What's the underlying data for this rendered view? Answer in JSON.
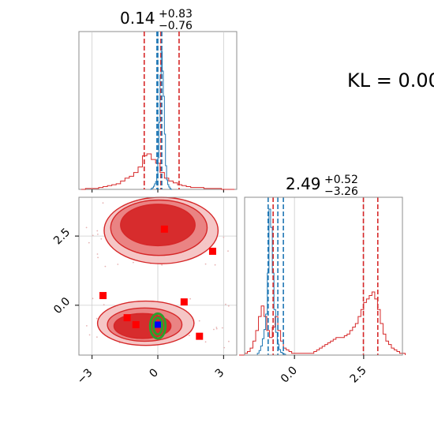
{
  "chart_data": {
    "type": "corner",
    "annotation": "KL = 0.00",
    "axis_ranges": {
      "x": [
        -3.6,
        3.6
      ],
      "y": [
        -1.8,
        3.9
      ]
    },
    "ticks": {
      "corner_x": [
        {
          "v": -3,
          "label": "−3"
        },
        {
          "v": 0,
          "label": "0"
        },
        {
          "v": 3,
          "label": "3"
        }
      ],
      "corner_y": [
        {
          "v": 0,
          "label": "0.0"
        },
        {
          "v": 2.5,
          "label": "2.5"
        }
      ],
      "hist2_x": [
        {
          "v": 0,
          "label": "0.0"
        },
        {
          "v": 2.5,
          "label": "2.5"
        }
      ]
    },
    "panels": [
      {
        "title_value": "0.14",
        "title_plus": "+0.83",
        "title_minus": "−0.76",
        "red_quantiles": [
          -0.62,
          0.14,
          0.97
        ],
        "blue_quantiles": [
          -0.04,
          0.0,
          0.18
        ],
        "blue_hist": {
          "x0": -0.35,
          "dx": 0.05,
          "counts": [
            0,
            1,
            2,
            4,
            7,
            10,
            18,
            40,
            85,
            145,
            175,
            150,
            118,
            70,
            30,
            12,
            6,
            3,
            1,
            0
          ]
        },
        "red_hist": {
          "x0": -3.5,
          "dx": 0.2,
          "counts": [
            0,
            1,
            1,
            1,
            2,
            3,
            4,
            5,
            6,
            9,
            12,
            14,
            18,
            24,
            36,
            38,
            32,
            28,
            18,
            12,
            9,
            7,
            5,
            4,
            3,
            2,
            2,
            2,
            1,
            1,
            1,
            1,
            0,
            0,
            0
          ]
        }
      },
      {
        "title_value": "2.49",
        "title_plus": "+0.52",
        "title_minus": "−3.26",
        "red_quantiles": [
          -0.77,
          2.49,
          3.01
        ],
        "blue_quantiles": [
          -0.95,
          -0.6,
          -0.4
        ],
        "blue_hist": {
          "x0": -1.4,
          "dx": 0.06,
          "counts": [
            0,
            2,
            5,
            10,
            18,
            28,
            45,
            90,
            160,
            140,
            90,
            50,
            25,
            12,
            6,
            3,
            2,
            1,
            0,
            0
          ]
        },
        "red_hist": {
          "x0": -2.0,
          "dx": 0.1,
          "counts": [
            0,
            0,
            1,
            2,
            4,
            8,
            14,
            22,
            28,
            22,
            14,
            10,
            16,
            22,
            14,
            8,
            4,
            3,
            2,
            1,
            1,
            1,
            1,
            1,
            1,
            1,
            1,
            2,
            3,
            4,
            5,
            6,
            7,
            8,
            9,
            10,
            10,
            10,
            11,
            12,
            14,
            16,
            18,
            22,
            26,
            30,
            32,
            34,
            36,
            32,
            26,
            18,
            12,
            8,
            6,
            4,
            3,
            2,
            1,
            1
          ]
        }
      }
    ],
    "contours_red": [
      {
        "cx": 0.0,
        "cy": 2.9,
        "rx": 1.7,
        "ry": 0.75
      },
      {
        "cx": 0.05,
        "cy": 2.8,
        "rx": 2.2,
        "ry": 1.0
      },
      {
        "cx": 0.15,
        "cy": 2.7,
        "rx": 2.6,
        "ry": 1.2
      },
      {
        "cx": -0.7,
        "cy": -0.75,
        "rx": 1.3,
        "ry": 0.45
      },
      {
        "cx": -0.6,
        "cy": -0.7,
        "rx": 1.7,
        "ry": 0.6
      },
      {
        "cx": -0.55,
        "cy": -0.65,
        "rx": 2.2,
        "ry": 0.8
      }
    ],
    "contours_green": [
      {
        "cx": 0.0,
        "cy": -0.75,
        "rx": 0.35,
        "ry": 0.45
      },
      {
        "cx": 0.0,
        "cy": -0.75,
        "rx": 0.2,
        "ry": 0.3
      }
    ],
    "truth_points": [
      {
        "x": 0.3,
        "y": 2.75
      },
      {
        "x": 2.5,
        "y": 1.95
      },
      {
        "x": -2.5,
        "y": 0.35
      },
      {
        "x": 1.2,
        "y": 0.12
      },
      {
        "x": -1.4,
        "y": -0.45
      },
      {
        "x": -1.0,
        "y": -0.7
      },
      {
        "x": 1.9,
        "y": -1.12
      }
    ],
    "blue_point": {
      "x": 0.0,
      "y": -0.7
    },
    "colors": {
      "red": "#d62728",
      "blue": "#1f77b4",
      "green": "#2ca02c",
      "truth": "#ff0000",
      "grid": "#cccccc",
      "spine": "#8c8c8c"
    }
  }
}
